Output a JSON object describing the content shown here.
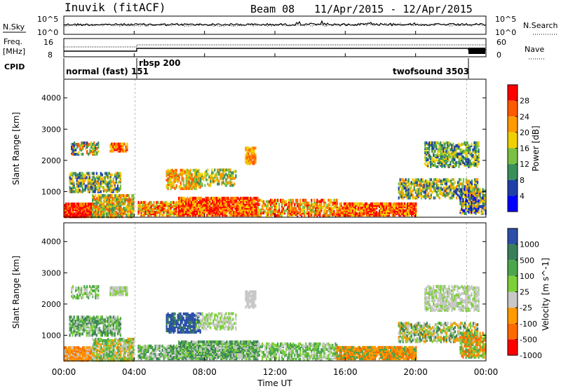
{
  "header": {
    "station": "Inuvik (fitACF)",
    "beam": "Beam 08",
    "date_range": "11/Apr/2015 - 12/Apr/2015"
  },
  "strips": {
    "nsky_label": "N.Sky",
    "nsky_ticks": [
      "10^5",
      "10^0"
    ],
    "nsearch_label": "N.Search",
    "nsearch_ticks": [
      "10^5",
      "10^0"
    ],
    "freq_label_1": "Freq.",
    "freq_label_2": "[MHz]",
    "freq_ticks": [
      "16",
      "8"
    ],
    "nave_label": "Nave",
    "nave_ticks": [
      "60",
      "0"
    ],
    "cpid_label": "CPID",
    "cpid_segments": [
      "normal (fast) 151",
      "rbsp 200",
      "twofsound 3503"
    ]
  },
  "chart_data": [
    {
      "type": "heatmap",
      "panel": "power",
      "ylabel": "Slant Range [km]",
      "y_ticks": [
        1000,
        2000,
        3000,
        4000
      ],
      "ylim": [
        180,
        4600
      ],
      "xlim_hours": [
        0,
        24
      ],
      "colorbar_label": "Power [dB]",
      "colorbar_ticks": [
        "28",
        "24",
        "20",
        "16",
        "12",
        "8",
        "4"
      ],
      "colorbar_colors": [
        "#ff0000",
        "#ff5a00",
        "#ff9a00",
        "#f0d000",
        "#7ac143",
        "#3a8f5a",
        "#1f3fa8",
        "#0000ff"
      ]
    },
    {
      "type": "heatmap",
      "panel": "velocity",
      "ylabel": "Slant Range [km]",
      "y_ticks": [
        1000,
        2000,
        3000,
        4000
      ],
      "ylim": [
        180,
        4600
      ],
      "xlim_hours": [
        0,
        24
      ],
      "colorbar_label": "Velocity [m s^-1]",
      "colorbar_ticks": [
        "1000",
        "500",
        "100",
        "25",
        "-25",
        "-100",
        "-500",
        "-1000"
      ],
      "colorbar_colors": [
        "#2b4fa8",
        "#3a7f5a",
        "#4ca64c",
        "#7ed03a",
        "#c8c8c8",
        "#ff9a00",
        "#ff6a00",
        "#ff0000"
      ]
    }
  ],
  "x_axis": {
    "ticks": [
      "00:00",
      "04:00",
      "08:00",
      "12:00",
      "16:00",
      "20:00",
      "00:00"
    ],
    "label": "Time UT"
  }
}
